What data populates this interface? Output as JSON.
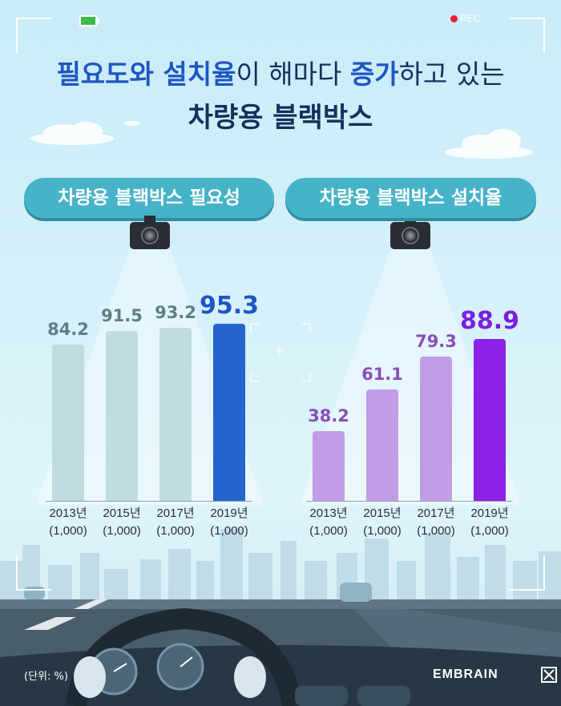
{
  "header": {
    "rec_label": "REC",
    "title_line1_parts": [
      {
        "text": "필요도와 설치율",
        "style": "hl"
      },
      {
        "text": "이 해마다 ",
        "style": "light"
      },
      {
        "text": "증가",
        "style": "hl"
      },
      {
        "text": "하고 있는",
        "style": "light"
      }
    ],
    "title_line2": "차량용 블랙박스"
  },
  "footer": {
    "unit_label": "(단위: %)",
    "brand": "EMBRAIN"
  },
  "chart_data": [
    {
      "type": "bar",
      "title": "차량용 블랙박스 필요성",
      "categories": [
        "2013년",
        "2015년",
        "2017년",
        "2019년"
      ],
      "sample_sizes": [
        "(1,000)",
        "(1,000)",
        "(1,000)",
        "(1,000)"
      ],
      "values": [
        84.2,
        91.5,
        93.2,
        95.3
      ],
      "value_labels": [
        "84.2",
        "91.5",
        "93.2",
        "95.3"
      ],
      "ylim": [
        0,
        100
      ],
      "grid": false,
      "colors": {
        "bar": "#bfdde1",
        "highlight": "#2563cf",
        "label": "#5f7f84",
        "highlight_label": "#1e56c6"
      }
    },
    {
      "type": "bar",
      "title": "차량용 블랙박스 설치율",
      "categories": [
        "2013년",
        "2015년",
        "2017년",
        "2019년"
      ],
      "sample_sizes": [
        "(1,000)",
        "(1,000)",
        "(1,000)",
        "(1,000)"
      ],
      "values": [
        38.2,
        61.1,
        79.3,
        88.9
      ],
      "value_labels": [
        "38.2",
        "61.1",
        "79.3",
        "88.9"
      ],
      "ylim": [
        0,
        100
      ],
      "grid": false,
      "colors": {
        "bar": "#c29de6",
        "highlight": "#8d22e6",
        "label": "#8a4fb5",
        "highlight_label": "#7a1fe0"
      }
    }
  ]
}
